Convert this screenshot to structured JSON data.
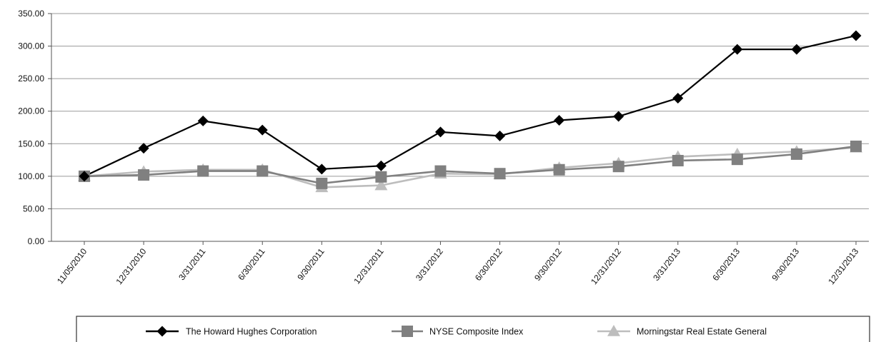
{
  "chart_data": {
    "type": "line",
    "title": "",
    "xlabel": "",
    "ylabel": "",
    "ylim": [
      0,
      350
    ],
    "y_ticks": [
      "0.00",
      "50.00",
      "100.00",
      "150.00",
      "200.00",
      "250.00",
      "300.00",
      "350.00"
    ],
    "grid": "horizontal",
    "legend_position": "bottom",
    "categories": [
      "11/05/2010",
      "12/31/2010",
      "3/31/2011",
      "6/30/2011",
      "9/30/2011",
      "12/31/2011",
      "3/31/2012",
      "6/30/2012",
      "9/30/2012",
      "12/31/2012",
      "3/31/2013",
      "6/30/2013",
      "9/30/2013",
      "12/31/2013"
    ],
    "series": [
      {
        "name": "The Howard Hughes Corporation",
        "color": "#000000",
        "marker": "diamond",
        "values": [
          100,
          143,
          185,
          171,
          111,
          116,
          168,
          162,
          186,
          192,
          220,
          295,
          295,
          316
        ]
      },
      {
        "name": "NYSE Composite Index",
        "color": "#808080",
        "marker": "square",
        "values": [
          100,
          102,
          108,
          108,
          89,
          99,
          108,
          104,
          110,
          115,
          124,
          126,
          134,
          146
        ]
      },
      {
        "name": "Morningstar Real Estate General",
        "color": "#bdbdbd",
        "marker": "triangle",
        "values": [
          100,
          107,
          110,
          110,
          83,
          86,
          104,
          103,
          113,
          120,
          130,
          134,
          138,
          144
        ]
      }
    ]
  }
}
